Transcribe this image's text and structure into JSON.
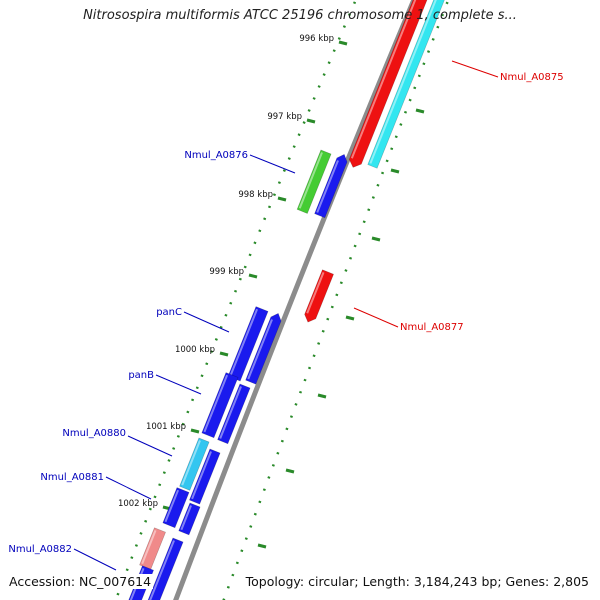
{
  "title": "Nitrosospira multiformis ATCC 25196 chromosome 1, complete s...",
  "footer": {
    "accession": "Accession: NC_007614",
    "summary": "Topology: circular; Length: 3,184,243 bp; Genes: 2,805"
  },
  "ticks": [
    {
      "label": "996 kbp"
    },
    {
      "label": "997 kbp"
    },
    {
      "label": "998 kbp"
    },
    {
      "label": "999 kbp"
    },
    {
      "label": "1000 kbp"
    },
    {
      "label": "1001 kbp"
    },
    {
      "label": "1002 kbp"
    }
  ],
  "gene_labels": [
    {
      "text": "Nmul_A0875",
      "color": "#dd0000"
    },
    {
      "text": "Nmul_A0876",
      "color": "#0000bb"
    },
    {
      "text": "Nmul_A0877",
      "color": "#dd0000"
    },
    {
      "text": "panC",
      "color": "#0000bb"
    },
    {
      "text": "panB",
      "color": "#0000bb"
    },
    {
      "text": "Nmul_A0880",
      "color": "#0000bb"
    },
    {
      "text": "Nmul_A0881",
      "color": "#0000bb"
    },
    {
      "text": "Nmul_A0882",
      "color": "#0000bb"
    }
  ],
  "colors": {
    "backbone": "#8c8c8c",
    "tick_marks": "#2a8a2a",
    "forward_cds": "#1a1aee",
    "reverse_cds": "#ee1111",
    "cyan_feature": "#33e6f0",
    "green_feature": "#44cc33",
    "pink_feature": "#f08a8a",
    "light_blue_feature": "#33c6f0"
  }
}
